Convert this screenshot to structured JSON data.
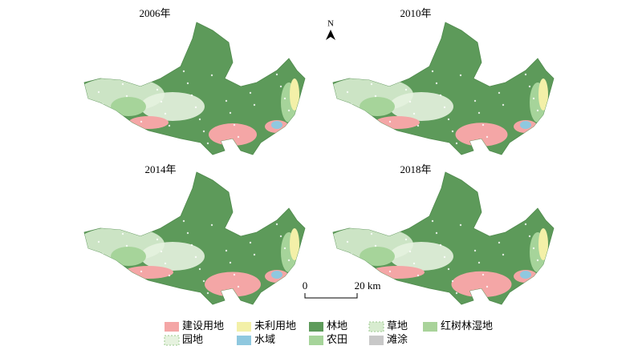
{
  "panels": [
    {
      "year": "2006年"
    },
    {
      "year": "2010年"
    },
    {
      "year": "2014年"
    },
    {
      "year": "2018年"
    }
  ],
  "north": "N",
  "scale_bar": {
    "labels": [
      "0",
      "20 km"
    ]
  },
  "legend": [
    {
      "label": "建设用地",
      "color": "#f4a6a6"
    },
    {
      "label": "未利用地",
      "color": "#f3f0a8"
    },
    {
      "label": "林地",
      "color": "#5d9a5a"
    },
    {
      "label": "草地",
      "color": "#d8ecd0"
    },
    {
      "label": "红树林湿地",
      "color": "#a9d39a"
    },
    {
      "label": "园地",
      "color": "#e6f2df"
    },
    {
      "label": "水域",
      "color": "#8fc8df"
    },
    {
      "label": "农田",
      "color": "#a6d49a"
    },
    {
      "label": "滩涂",
      "color": "#c8c8c8"
    }
  ]
}
